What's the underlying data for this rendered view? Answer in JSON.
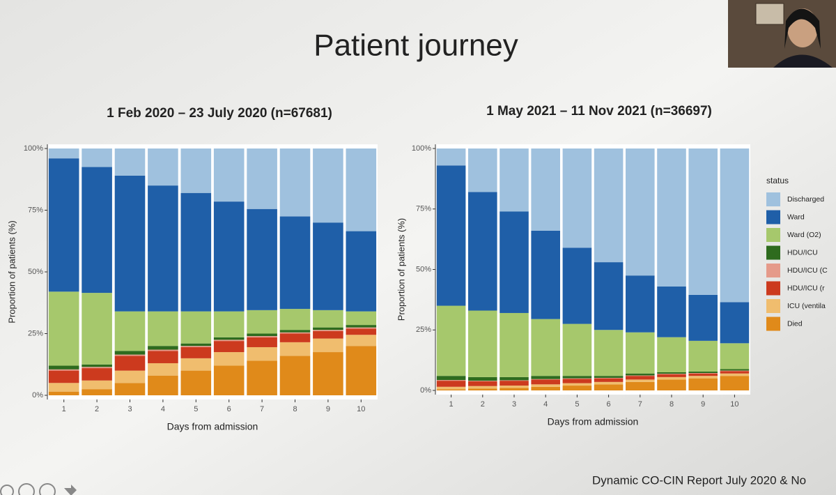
{
  "title": "Patient journey",
  "footer": "Dynamic CO-CIN Report July 2020 & No",
  "chart_data": [
    {
      "type": "stacked_bar",
      "title": "1 Feb 2020 – 23 July 2020 (n=67681)",
      "x_label": "Days from admission",
      "y_label": "Proportion of patients (%)",
      "categories": [
        1,
        2,
        3,
        4,
        5,
        6,
        7,
        8,
        9,
        10
      ],
      "ylim": [
        0,
        100
      ],
      "yticks": [
        {
          "value": 0,
          "label": "0%"
        },
        {
          "value": 25,
          "label": "25%"
        },
        {
          "value": 50,
          "label": "50%"
        },
        {
          "value": 75,
          "label": "75%"
        },
        {
          "value": 100,
          "label": "100%"
        }
      ],
      "series": [
        {
          "color": "#e08a1a",
          "values": [
            1.5,
            2.5,
            5,
            8,
            10,
            12,
            14,
            16,
            17.5,
            20
          ]
        },
        {
          "color": "#f0bd6e",
          "values": [
            3.5,
            3.5,
            5,
            5,
            5,
            5.5,
            5.5,
            5.5,
            5.5,
            4.5
          ]
        },
        {
          "color": "#cc3a1e",
          "values": [
            5,
            5,
            6,
            5,
            4.5,
            4.5,
            4,
            3.5,
            3,
            2.5
          ]
        },
        {
          "color": "#e59a8a",
          "values": [
            0.5,
            0.5,
            0.5,
            0.5,
            0.5,
            0.5,
            0.5,
            0.5,
            0.5,
            0.5
          ]
        },
        {
          "color": "#2e6b1e",
          "values": [
            1.5,
            1,
            1.5,
            1.5,
            1,
            1,
            1,
            1,
            1,
            1
          ]
        },
        {
          "color": "#a6c86c",
          "values": [
            30,
            29,
            16,
            14,
            13,
            10.5,
            9.5,
            8.5,
            7,
            5.5
          ]
        },
        {
          "color": "#1f5fa8",
          "values": [
            54,
            51,
            55,
            51,
            48,
            44.5,
            41,
            37.5,
            35.5,
            32.5
          ]
        },
        {
          "color": "#9fc1de",
          "values": [
            4,
            7.5,
            11,
            15,
            18,
            21.5,
            24.5,
            27.5,
            30,
            33.5
          ]
        }
      ]
    },
    {
      "type": "stacked_bar",
      "title": "1 May 2021 – 11 Nov 2021 (n=36697)",
      "x_label": "Days from admission",
      "y_label": "Proportion of patients (%)",
      "legend_title": "status",
      "categories": [
        1,
        2,
        3,
        4,
        5,
        6,
        7,
        8,
        9,
        10
      ],
      "ylim": [
        0,
        100
      ],
      "yticks": [
        {
          "value": 0,
          "label": "0%"
        },
        {
          "value": 25,
          "label": "25%"
        },
        {
          "value": 50,
          "label": "50%"
        },
        {
          "value": 75,
          "label": "75%"
        },
        {
          "value": 100,
          "label": "100%"
        }
      ],
      "series": [
        {
          "name": "Died",
          "color": "#e08a1a",
          "values": [
            0.5,
            0.8,
            1,
            1.5,
            2,
            2.5,
            3.5,
            4.5,
            5,
            6
          ]
        },
        {
          "name": "ICU (ventila",
          "color": "#f0bd6e",
          "values": [
            1,
            1,
            1,
            1,
            1,
            1,
            1,
            1,
            1,
            1
          ]
        },
        {
          "name": "HDU/ICU (r",
          "color": "#cc3a1e",
          "values": [
            2.5,
            2,
            2,
            2,
            1.8,
            1.5,
            1.5,
            1.2,
            1,
            1
          ]
        },
        {
          "name": "HDU/ICU (C",
          "color": "#e59a8a",
          "values": [
            0.3,
            0.2,
            0.2,
            0.2,
            0.2,
            0.2,
            0.2,
            0.2,
            0.2,
            0.2
          ]
        },
        {
          "name": "HDU/ICU",
          "color": "#2e6b1e",
          "values": [
            1.7,
            1.5,
            1.3,
            1.3,
            1,
            0.8,
            0.8,
            0.6,
            0.6,
            0.6
          ]
        },
        {
          "name": "Ward (O2)",
          "color": "#a6c86c",
          "values": [
            29,
            27.5,
            26.5,
            23.5,
            21.5,
            19,
            17,
            14.5,
            12.7,
            10.7
          ]
        },
        {
          "name": "Ward",
          "color": "#1f5fa8",
          "values": [
            58,
            49,
            42,
            36.5,
            31.5,
            28,
            23.5,
            21,
            19,
            17
          ]
        },
        {
          "name": "Discharged",
          "color": "#9fc1de",
          "values": [
            7,
            18,
            26,
            34,
            41,
            47,
            52.5,
            57,
            60.5,
            63.5
          ]
        }
      ]
    }
  ]
}
